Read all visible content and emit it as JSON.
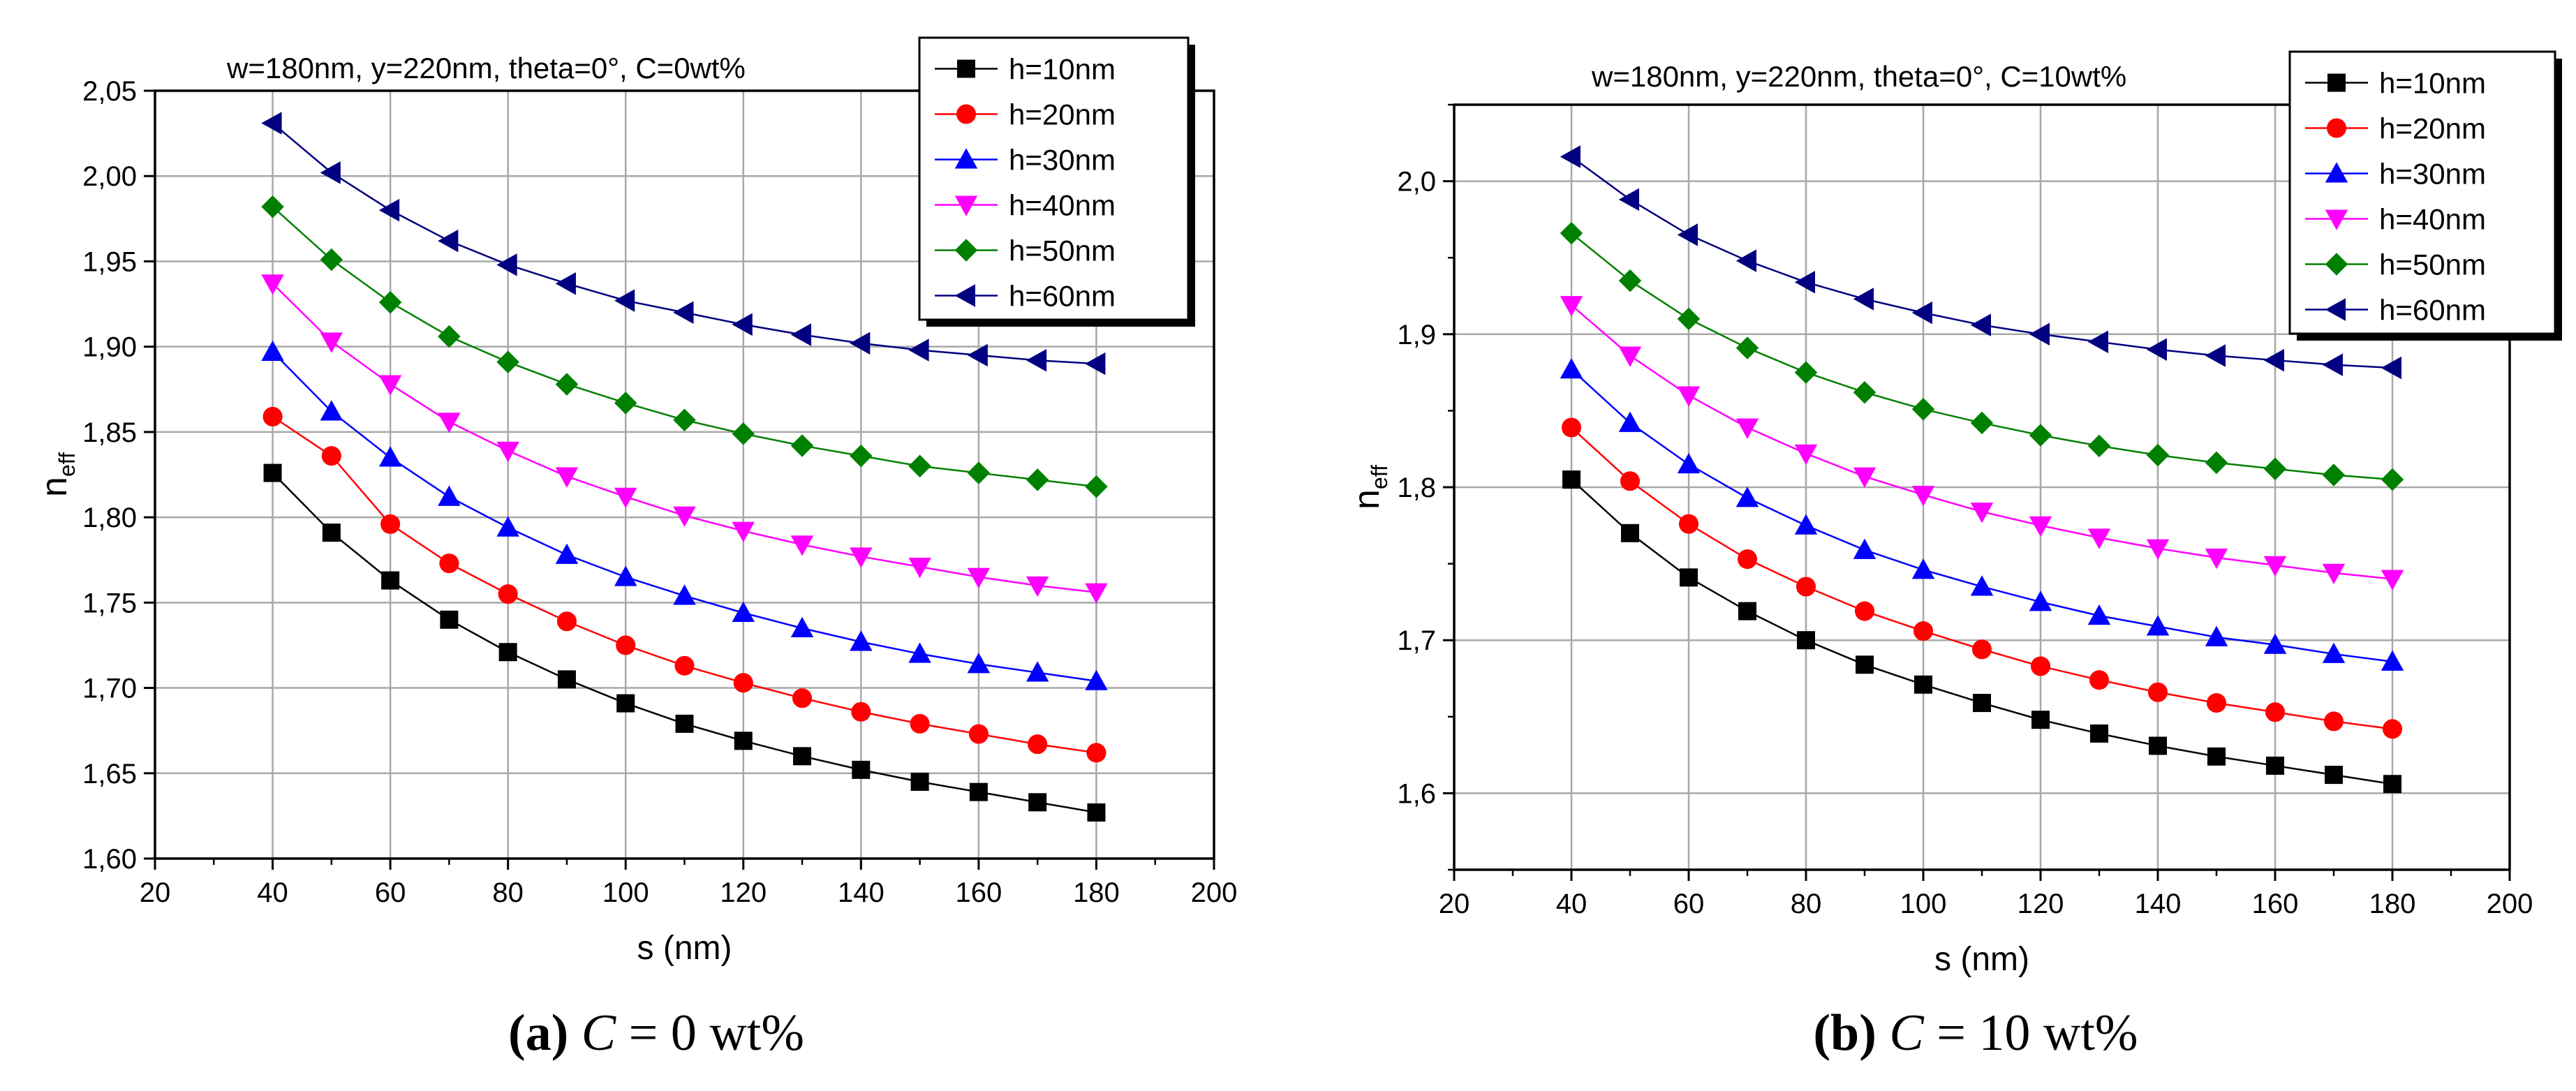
{
  "chart_data": [
    {
      "type": "line",
      "title": "w=180nm, y=220nm, theta=0°, C=0wt%",
      "xlabel": "s (nm)",
      "ylabel_main": "n",
      "ylabel_sub": "eff",
      "xlim": [
        20,
        200
      ],
      "ylim": [
        1.6,
        2.05
      ],
      "xticks": [
        20,
        40,
        60,
        80,
        100,
        120,
        140,
        160,
        180,
        200
      ],
      "xtick_labels": [
        "20",
        "40",
        "60",
        "80",
        "100",
        "120",
        "140",
        "160",
        "180",
        "200"
      ],
      "yticks": [
        1.6,
        1.65,
        1.7,
        1.75,
        1.8,
        1.85,
        1.9,
        1.95,
        2.0,
        2.05
      ],
      "ytick_labels": [
        "1,60",
        "1,65",
        "1,70",
        "1,75",
        "1,80",
        "1,85",
        "1,90",
        "1,95",
        "2,00",
        "2,05"
      ],
      "grid": true,
      "legend_position": "top-right",
      "x": [
        40,
        50,
        60,
        70,
        80,
        90,
        100,
        110,
        120,
        130,
        140,
        150,
        160,
        170,
        180
      ],
      "series": [
        {
          "name": "h=10nm",
          "color": "#000000",
          "marker": "square",
          "values": [
            1.826,
            1.791,
            1.763,
            1.74,
            1.721,
            1.705,
            1.691,
            1.679,
            1.669,
            1.66,
            1.652,
            1.645,
            1.639,
            1.633,
            1.627
          ]
        },
        {
          "name": "h=20nm",
          "color": "#ff0000",
          "marker": "circle",
          "values": [
            1.859,
            1.836,
            1.796,
            1.773,
            1.755,
            1.739,
            1.725,
            1.713,
            1.703,
            1.694,
            1.686,
            1.679,
            1.673,
            1.667,
            1.662
          ]
        },
        {
          "name": "h=30nm",
          "color": "#0000ff",
          "marker": "triangle-up",
          "values": [
            1.897,
            1.862,
            1.835,
            1.812,
            1.794,
            1.778,
            1.765,
            1.754,
            1.744,
            1.735,
            1.727,
            1.72,
            1.714,
            1.709,
            1.704
          ]
        },
        {
          "name": "h=40nm",
          "color": "#ff00ff",
          "marker": "triangle-down",
          "values": [
            1.937,
            1.903,
            1.878,
            1.856,
            1.839,
            1.824,
            1.812,
            1.801,
            1.792,
            1.784,
            1.777,
            1.771,
            1.765,
            1.76,
            1.756
          ]
        },
        {
          "name": "h=50nm",
          "color": "#008000",
          "marker": "diamond",
          "values": [
            1.982,
            1.951,
            1.926,
            1.906,
            1.891,
            1.878,
            1.867,
            1.857,
            1.849,
            1.842,
            1.836,
            1.83,
            1.826,
            1.822,
            1.818
          ]
        },
        {
          "name": "h=60nm",
          "color": "#000080",
          "marker": "triangle-left",
          "values": [
            2.031,
            2.002,
            1.98,
            1.962,
            1.948,
            1.937,
            1.927,
            1.92,
            1.913,
            1.907,
            1.902,
            1.898,
            1.895,
            1.892,
            1.89
          ]
        }
      ]
    },
    {
      "type": "line",
      "title": "w=180nm, y=220nm, theta=0°, C=10wt%",
      "xlabel": "s (nm)",
      "ylabel_main": "n",
      "ylabel_sub": "eff",
      "xlim": [
        20,
        200
      ],
      "ylim": [
        1.55,
        2.05
      ],
      "xticks": [
        20,
        40,
        60,
        80,
        100,
        120,
        140,
        160,
        180,
        200
      ],
      "xtick_labels": [
        "20",
        "40",
        "60",
        "80",
        "100",
        "120",
        "140",
        "160",
        "180",
        "200"
      ],
      "yticks": [
        1.6,
        1.7,
        1.8,
        1.9,
        2.0
      ],
      "ytick_labels": [
        "1,6",
        "1,7",
        "1,8",
        "1,9",
        "2,0"
      ],
      "minor_yticks": [
        1.55,
        1.65,
        1.75,
        1.85,
        1.95,
        2.05
      ],
      "grid": true,
      "legend_position": "top-right",
      "x": [
        40,
        50,
        60,
        70,
        80,
        90,
        100,
        110,
        120,
        130,
        140,
        150,
        160,
        170,
        180
      ],
      "series": [
        {
          "name": "h=10nm",
          "color": "#000000",
          "marker": "square",
          "values": [
            1.805,
            1.77,
            1.741,
            1.719,
            1.7,
            1.684,
            1.671,
            1.659,
            1.648,
            1.639,
            1.631,
            1.624,
            1.618,
            1.612,
            1.606
          ]
        },
        {
          "name": "h=20nm",
          "color": "#ff0000",
          "marker": "circle",
          "values": [
            1.839,
            1.804,
            1.776,
            1.753,
            1.735,
            1.719,
            1.706,
            1.694,
            1.683,
            1.674,
            1.666,
            1.659,
            1.653,
            1.647,
            1.642
          ]
        },
        {
          "name": "h=30nm",
          "color": "#0000ff",
          "marker": "triangle-up",
          "values": [
            1.877,
            1.842,
            1.815,
            1.793,
            1.775,
            1.759,
            1.746,
            1.735,
            1.725,
            1.716,
            1.709,
            1.702,
            1.697,
            1.691,
            1.686
          ]
        },
        {
          "name": "h=40nm",
          "color": "#ff00ff",
          "marker": "triangle-down",
          "values": [
            1.919,
            1.886,
            1.86,
            1.839,
            1.822,
            1.807,
            1.795,
            1.784,
            1.775,
            1.767,
            1.76,
            1.754,
            1.749,
            1.744,
            1.74
          ]
        },
        {
          "name": "h=50nm",
          "color": "#008000",
          "marker": "diamond",
          "values": [
            1.966,
            1.935,
            1.91,
            1.891,
            1.875,
            1.862,
            1.851,
            1.842,
            1.834,
            1.827,
            1.821,
            1.816,
            1.812,
            1.808,
            1.805
          ]
        },
        {
          "name": "h=60nm",
          "color": "#000080",
          "marker": "triangle-left",
          "values": [
            2.016,
            1.988,
            1.965,
            1.948,
            1.934,
            1.923,
            1.914,
            1.906,
            1.9,
            1.895,
            1.89,
            1.886,
            1.883,
            1.88,
            1.878
          ]
        }
      ]
    }
  ],
  "captions": [
    {
      "label": "(a)",
      "var": "C",
      "rest": " = 0 wt%"
    },
    {
      "label": "(b)",
      "var": "C",
      "rest": " = 10 wt%"
    }
  ]
}
